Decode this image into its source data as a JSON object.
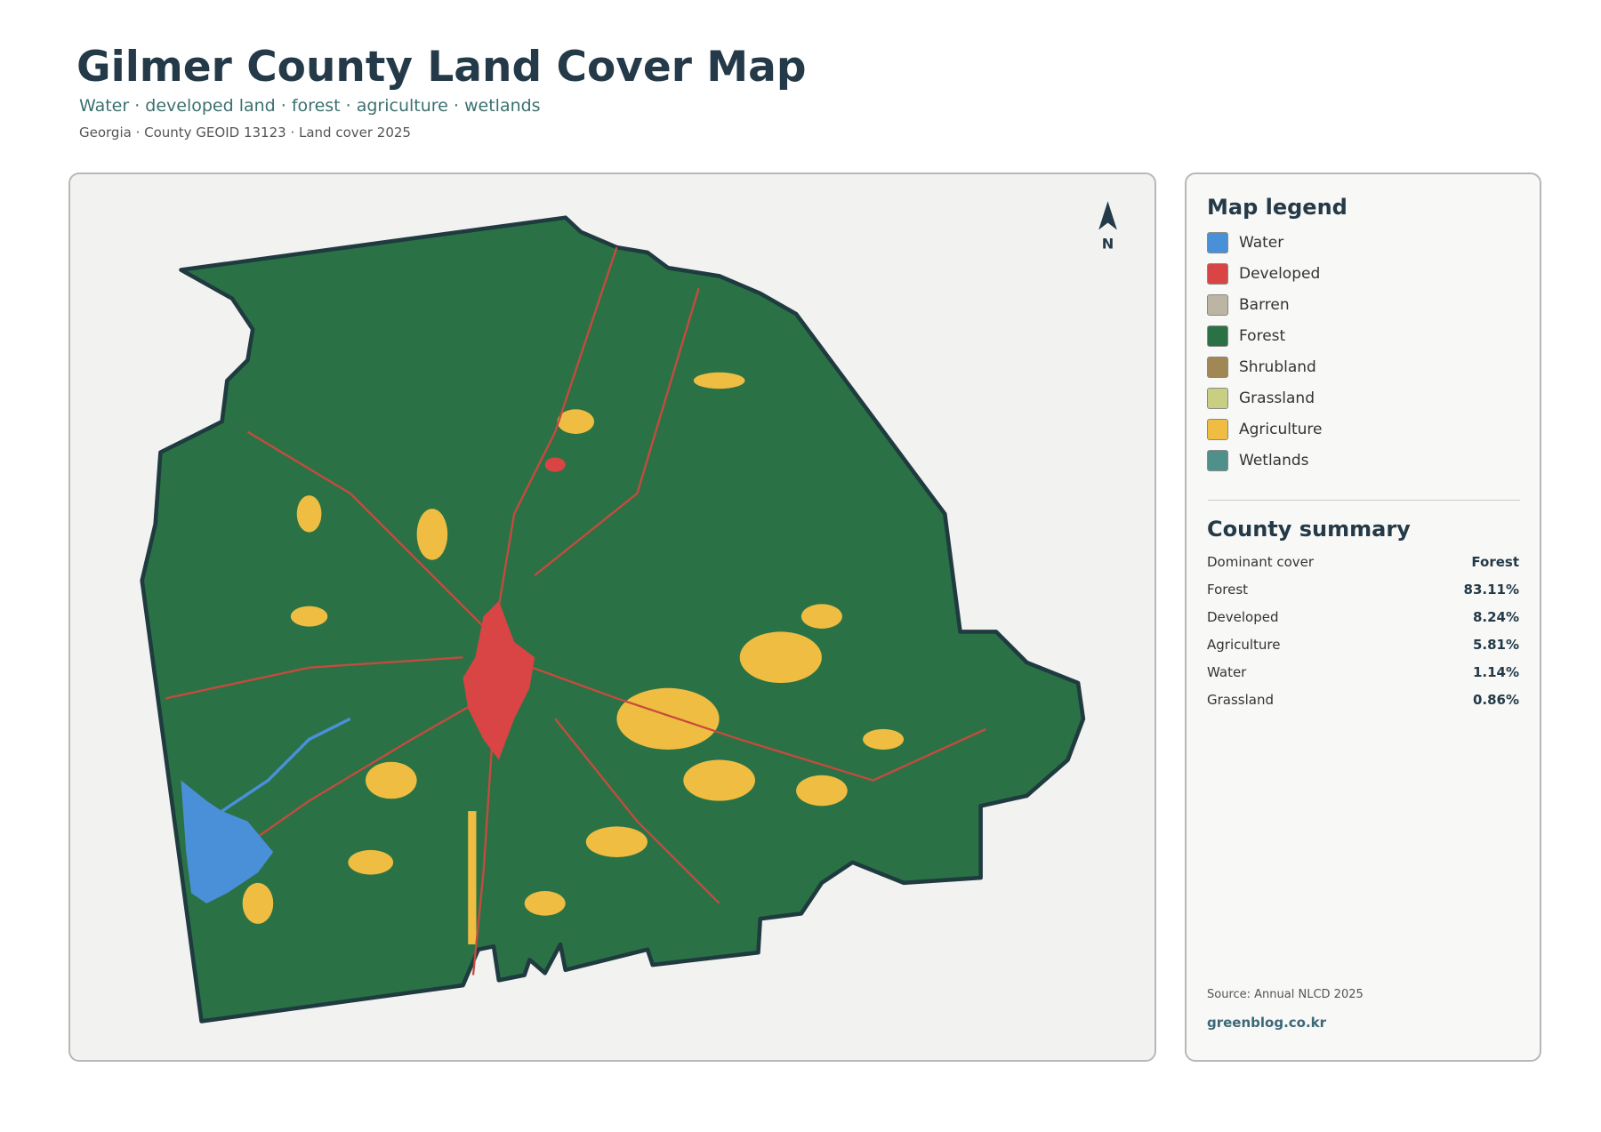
{
  "header": {
    "title": "Gilmer County Land Cover Map",
    "subtitle": "Water · developed land · forest · agriculture · wetlands",
    "meta": "Georgia · County GEOID 13123 · Land cover 2025"
  },
  "map": {
    "north_label": "N"
  },
  "legend": {
    "title": "Map legend",
    "items": [
      {
        "label": "Water",
        "color": "#4a90d9"
      },
      {
        "label": "Developed",
        "color": "#d94444"
      },
      {
        "label": "Barren",
        "color": "#bdb5a3"
      },
      {
        "label": "Forest",
        "color": "#2a7245"
      },
      {
        "label": "Shrubland",
        "color": "#a08754"
      },
      {
        "label": "Grassland",
        "color": "#c9cf82"
      },
      {
        "label": "Agriculture",
        "color": "#efbd42"
      },
      {
        "label": "Wetlands",
        "color": "#4f918a"
      }
    ]
  },
  "summary": {
    "title": "County summary",
    "rows": [
      [
        "Dominant cover",
        "Forest"
      ],
      [
        "Forest",
        "83.11%"
      ],
      [
        "Developed",
        "8.24%"
      ],
      [
        "Agriculture",
        "5.81%"
      ],
      [
        "Water",
        "1.14%"
      ],
      [
        "Grassland",
        "0.86%"
      ]
    ]
  },
  "footer": {
    "source": "Source: Annual NLCD 2025",
    "site": "greenblog.co.kr"
  }
}
